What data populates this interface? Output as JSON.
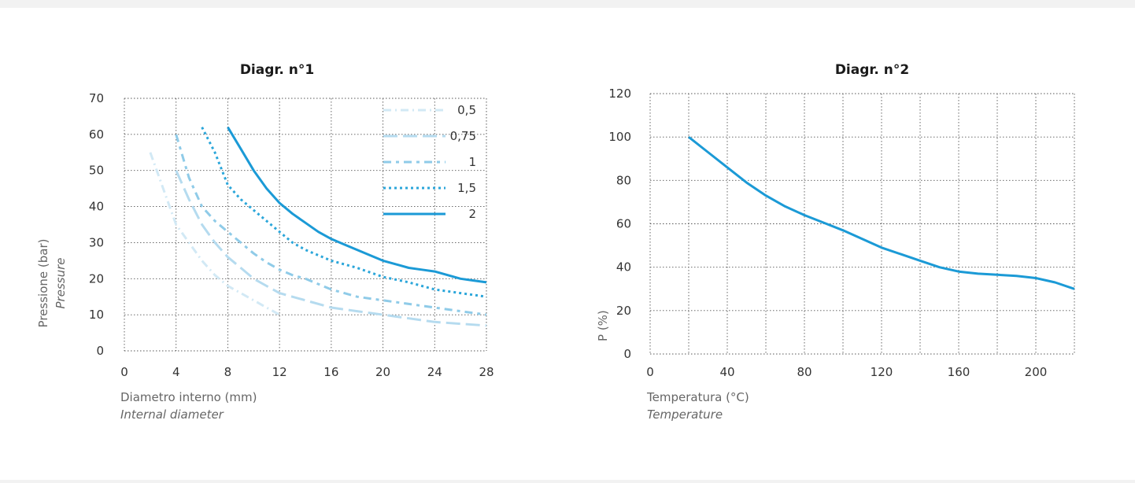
{
  "chart_data": [
    {
      "type": "line",
      "title": "Diagr. n°1",
      "xlabel": "Diametro interno (mm)",
      "xlabel_sub": "Internal diameter",
      "ylabel": "Pressione (bar)",
      "ylabel_sub": "Pressure",
      "xlim": [
        0,
        28
      ],
      "ylim": [
        0,
        70
      ],
      "xticks": [
        0,
        4,
        8,
        12,
        16,
        20,
        24,
        28
      ],
      "yticks": [
        0,
        10,
        20,
        30,
        40,
        50,
        60,
        70
      ],
      "grid": true,
      "legend_position": "top-right",
      "series": [
        {
          "name": "0,5",
          "color": "#d2e9f5",
          "style": "dashdot",
          "x": [
            2,
            3,
            4,
            5,
            6,
            7,
            8,
            9,
            10,
            11,
            12
          ],
          "y": [
            55,
            45,
            35,
            30,
            25,
            21,
            18,
            16,
            14,
            12,
            10
          ]
        },
        {
          "name": "0,75",
          "color": "#b5dbef",
          "style": "longdash",
          "x": [
            4,
            5,
            6,
            7,
            8,
            9,
            10,
            11,
            12,
            14,
            16,
            18,
            20,
            22,
            24,
            26,
            28
          ],
          "y": [
            50,
            42,
            35,
            30,
            26,
            23,
            20,
            18,
            16,
            14,
            12,
            11,
            10,
            9,
            8,
            7.5,
            7
          ]
        },
        {
          "name": "1",
          "color": "#8fcbe8",
          "style": "dash",
          "x": [
            4,
            5,
            6,
            7,
            8,
            9,
            10,
            11,
            12,
            13,
            14,
            16,
            18,
            20,
            22,
            24,
            26,
            28
          ],
          "y": [
            60,
            48,
            40,
            36,
            33,
            30,
            27,
            24.5,
            22.5,
            21,
            20,
            17,
            15,
            14,
            13,
            12,
            11,
            10
          ]
        },
        {
          "name": "1,5",
          "color": "#2ba6da",
          "style": "dot",
          "x": [
            6,
            7,
            8,
            9,
            10,
            11,
            12,
            13,
            14,
            15,
            16,
            18,
            20,
            22,
            24,
            26,
            28
          ],
          "y": [
            62,
            55,
            46,
            42,
            39,
            36,
            33,
            30,
            28,
            26.5,
            25,
            23,
            20.5,
            19,
            17,
            16,
            15
          ]
        },
        {
          "name": "2",
          "color": "#1b9ad6",
          "style": "solid",
          "x": [
            8,
            9,
            10,
            11,
            12,
            13,
            14,
            15,
            16,
            17,
            18,
            19,
            20,
            21,
            22,
            23,
            24,
            25,
            26,
            27,
            28
          ],
          "y": [
            62,
            56,
            50,
            45,
            41,
            38,
            35.5,
            33,
            31,
            29.5,
            28,
            26.5,
            25,
            24,
            23,
            22.5,
            22,
            21,
            20,
            19.5,
            19
          ]
        }
      ]
    },
    {
      "type": "line",
      "title": "Diagr. n°2",
      "xlabel": "Temperatura (°C)",
      "xlabel_sub": "Temperature",
      "ylabel": "P (%)",
      "xlim": [
        0,
        220
      ],
      "ylim": [
        0,
        120
      ],
      "xticks": [
        0,
        40,
        80,
        120,
        160,
        200
      ],
      "yticks": [
        0,
        20,
        40,
        60,
        80,
        100,
        120
      ],
      "x_gridlines": [
        0,
        20,
        40,
        60,
        80,
        100,
        120,
        140,
        160,
        180,
        200
      ],
      "grid": true,
      "series": [
        {
          "name": "",
          "color": "#1b9ad6",
          "style": "solid",
          "x": [
            20,
            30,
            40,
            50,
            60,
            70,
            80,
            90,
            100,
            110,
            120,
            130,
            140,
            150,
            160,
            170,
            180,
            190,
            200,
            210,
            220
          ],
          "y": [
            100,
            93,
            86,
            79,
            73,
            68,
            64,
            60.5,
            57,
            53,
            49,
            46,
            43,
            40,
            38,
            37,
            36.5,
            36,
            35,
            33,
            30
          ]
        }
      ]
    }
  ]
}
